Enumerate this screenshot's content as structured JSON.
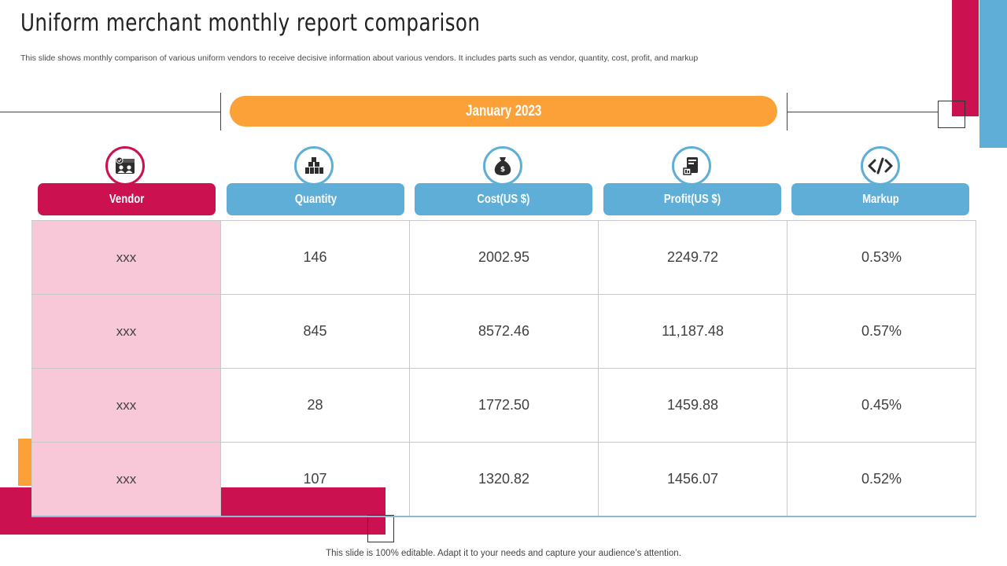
{
  "title": "Uniform merchant monthly report comparison",
  "subtitle": "This slide shows monthly comparison of various uniform vendors to receive decisive information about various vendors. It includes parts such as vendor, quantity, cost, profit, and markup",
  "period": "January  2023",
  "colors": {
    "red": "#cc1150",
    "blue": "#5eaed8",
    "orange": "#fca038",
    "vendor_cell": "#f8c8d8"
  },
  "columns": [
    {
      "label": "Vendor",
      "icon": "store-icon"
    },
    {
      "label": "Quantity",
      "icon": "stacked-blocks-icon"
    },
    {
      "label": "Cost(US $)",
      "icon": "money-bag-icon"
    },
    {
      "label": "Profit(US $)",
      "icon": "profit-document-icon"
    },
    {
      "label": "Markup",
      "icon": "code-tag-icon"
    }
  ],
  "rows": [
    [
      "xxx",
      "146",
      "2002.95",
      "2249.72",
      "0.53%"
    ],
    [
      "xxx",
      "845",
      "8572.46",
      "11,187.48",
      "0.57%"
    ],
    [
      "xxx",
      "28",
      "1772.50",
      "1459.88",
      "0.45%"
    ],
    [
      "xxx",
      "107",
      "1320.82",
      "1456.07",
      "0.52%"
    ]
  ],
  "footer": "This slide is 100% editable. Adapt it to your needs and capture your audience’s attention."
}
